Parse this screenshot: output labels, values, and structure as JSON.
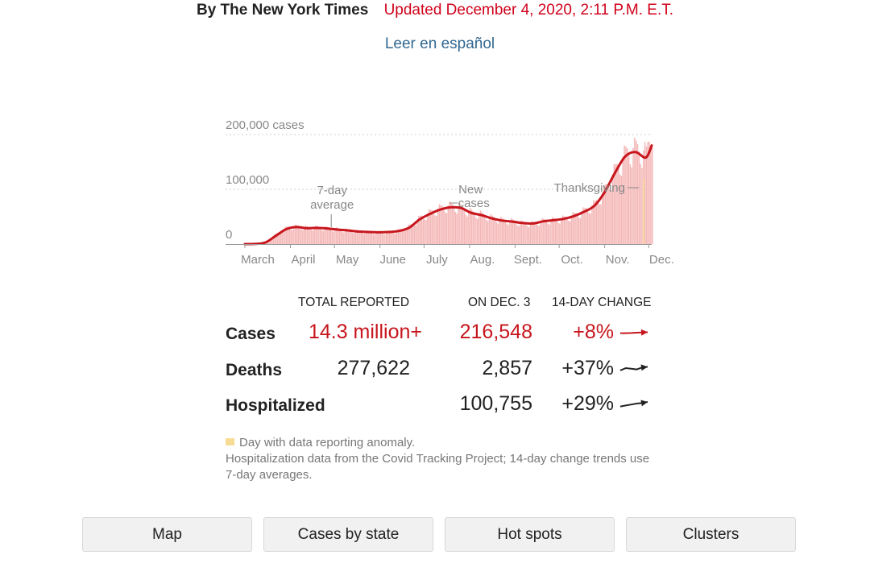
{
  "byline": {
    "author": "By The New York Times",
    "updated": "Updated December 4, 2020, 2:11 P.M. E.T."
  },
  "language_link": "Leer en español",
  "chart_data": {
    "type": "bar",
    "title": "",
    "xlabel": "",
    "ylabel": "",
    "x_range": [
      "2020-03-01",
      "2020-12-03"
    ],
    "ylim": [
      0,
      220000
    ],
    "y_ticks": [
      {
        "value": 0,
        "label": "0"
      },
      {
        "value": 100000,
        "label": "100,000"
      },
      {
        "value": 200000,
        "label": "200,000 cases"
      }
    ],
    "x_ticks": [
      {
        "date": "2020-03-01",
        "label": "March"
      },
      {
        "date": "2020-04-01",
        "label": "April"
      },
      {
        "date": "2020-05-01",
        "label": "May"
      },
      {
        "date": "2020-06-01",
        "label": "June"
      },
      {
        "date": "2020-07-01",
        "label": "July"
      },
      {
        "date": "2020-08-01",
        "label": "Aug."
      },
      {
        "date": "2020-09-01",
        "label": "Sept."
      },
      {
        "date": "2020-10-01",
        "label": "Oct."
      },
      {
        "date": "2020-11-01",
        "label": "Nov."
      },
      {
        "date": "2020-12-01",
        "label": "Dec."
      }
    ],
    "series": [
      {
        "name": "New cases",
        "type": "bar",
        "color": "#f4b6b6",
        "weekly": {
          "dates": [
            "2020-03-01",
            "2020-03-08",
            "2020-03-15",
            "2020-03-22",
            "2020-03-29",
            "2020-04-05",
            "2020-04-12",
            "2020-04-19",
            "2020-04-26",
            "2020-05-03",
            "2020-05-10",
            "2020-05-17",
            "2020-05-24",
            "2020-05-31",
            "2020-06-07",
            "2020-06-14",
            "2020-06-21",
            "2020-06-28",
            "2020-07-05",
            "2020-07-12",
            "2020-07-19",
            "2020-07-26",
            "2020-08-02",
            "2020-08-09",
            "2020-08-16",
            "2020-08-23",
            "2020-08-30",
            "2020-09-06",
            "2020-09-13",
            "2020-09-20",
            "2020-09-27",
            "2020-10-04",
            "2020-10-11",
            "2020-10-18",
            "2020-10-25",
            "2020-11-01",
            "2020-11-08",
            "2020-11-15",
            "2020-11-22",
            "2020-11-29",
            "2020-12-03"
          ],
          "values": [
            100,
            600,
            5000,
            18000,
            30000,
            32000,
            30000,
            30000,
            29000,
            27000,
            25000,
            23000,
            22000,
            21000,
            22000,
            25000,
            33000,
            48000,
            58000,
            66000,
            70000,
            66000,
            58000,
            54000,
            48000,
            44000,
            42000,
            38000,
            38000,
            43000,
            44000,
            47000,
            53000,
            61000,
            73000,
            100000,
            135000,
            165000,
            175000,
            165000,
            216548
          ]
        }
      },
      {
        "name": "7-day average",
        "type": "line",
        "color": "#c7161d",
        "weekly": {
          "dates": [
            "2020-03-01",
            "2020-03-08",
            "2020-03-15",
            "2020-03-22",
            "2020-03-29",
            "2020-04-05",
            "2020-04-12",
            "2020-04-19",
            "2020-04-26",
            "2020-05-03",
            "2020-05-10",
            "2020-05-17",
            "2020-05-24",
            "2020-05-31",
            "2020-06-07",
            "2020-06-14",
            "2020-06-21",
            "2020-06-28",
            "2020-07-05",
            "2020-07-12",
            "2020-07-19",
            "2020-07-26",
            "2020-08-02",
            "2020-08-09",
            "2020-08-16",
            "2020-08-23",
            "2020-08-30",
            "2020-09-06",
            "2020-09-13",
            "2020-09-20",
            "2020-09-27",
            "2020-10-04",
            "2020-10-11",
            "2020-10-18",
            "2020-10-25",
            "2020-11-01",
            "2020-11-08",
            "2020-11-15",
            "2020-11-22",
            "2020-11-29",
            "2020-12-03"
          ],
          "values": [
            50,
            300,
            3000,
            15000,
            27000,
            31000,
            29000,
            29500,
            28500,
            26500,
            25000,
            23000,
            22000,
            21500,
            22000,
            24000,
            30000,
            45000,
            55000,
            63000,
            67000,
            66000,
            57000,
            53000,
            47000,
            43000,
            41000,
            38500,
            37500,
            41500,
            43500,
            46000,
            51000,
            59000,
            70000,
            95000,
            130000,
            160000,
            168000,
            158000,
            180000
          ]
        }
      }
    ],
    "annotations": [
      {
        "text": "7-day average",
        "date": "2020-05-01"
      },
      {
        "text": "New cases",
        "date": "2020-07-25"
      },
      {
        "text": "Thanksgiving",
        "date": "2020-11-26"
      }
    ],
    "anomaly_days": [
      "2020-11-27"
    ]
  },
  "stats": {
    "headers": {
      "total": "TOTAL REPORTED",
      "on_day": "ON DEC. 3",
      "change": "14-DAY CHANGE"
    },
    "rows": [
      {
        "label": "Cases",
        "total": "14.3 million+",
        "on_day": "216,548",
        "change": "+8%",
        "color": "#c7161d",
        "trend": [
          0.55,
          0.55,
          0.58,
          0.62,
          0.66,
          0.7
        ]
      },
      {
        "label": "Deaths",
        "total": "277,622",
        "on_day": "2,857",
        "change": "+37%",
        "color": "#222222",
        "trend": [
          0.4,
          0.75,
          0.65,
          0.55,
          0.85,
          0.95
        ]
      },
      {
        "label": "Hospitalized",
        "total": "",
        "on_day": "100,755",
        "change": "+29%",
        "color": "#222222",
        "trend": [
          0.3,
          0.45,
          0.6,
          0.75,
          0.85,
          1.0
        ]
      }
    ]
  },
  "notes": {
    "anomaly": "Day with data reporting anomaly.",
    "source": "Hospitalization data from the Covid Tracking Project; 14-day change trends use 7-day averages."
  },
  "nav": {
    "map": "Map",
    "cases_by_state": "Cases by state",
    "hot_spots": "Hot spots",
    "clusters": "Clusters"
  }
}
